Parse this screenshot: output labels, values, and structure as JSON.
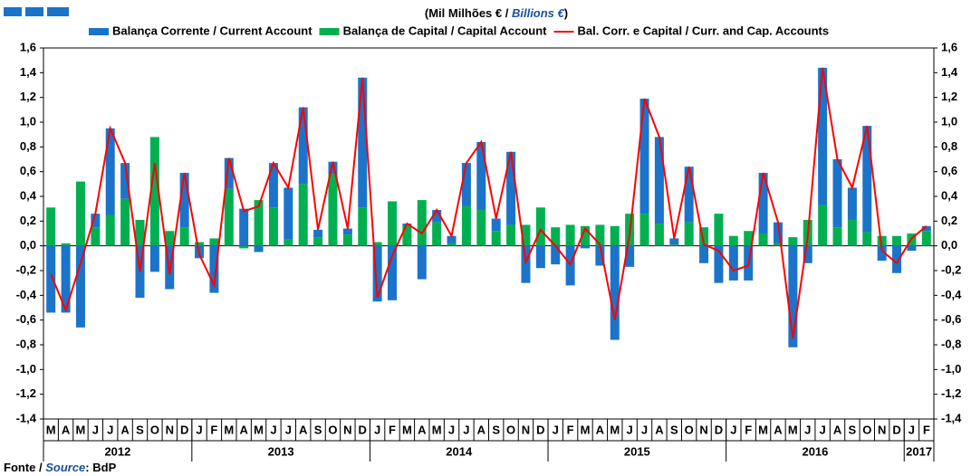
{
  "chart_data": {
    "type": "stacked-bar-line",
    "subtitle_parts": [
      "(Mil Milhões € / ",
      "Billions €",
      ")"
    ],
    "source_parts": [
      "Fonte / ",
      "Source",
      ": BdP"
    ],
    "categories": [
      "M",
      "A",
      "M",
      "J",
      "J",
      "A",
      "S",
      "O",
      "N",
      "D",
      "J",
      "F",
      "M",
      "A",
      "M",
      "J",
      "J",
      "A",
      "S",
      "O",
      "N",
      "D",
      "J",
      "F",
      "M",
      "A",
      "M",
      "J",
      "J",
      "A",
      "S",
      "O",
      "N",
      "D",
      "J",
      "F",
      "M",
      "A",
      "M",
      "J",
      "J",
      "A",
      "S",
      "O",
      "N",
      "D",
      "J",
      "F",
      "M",
      "A",
      "M",
      "J",
      "J",
      "A",
      "S",
      "O",
      "N",
      "D",
      "J",
      "F"
    ],
    "category_years": [
      "2012",
      "2012",
      "2012",
      "2012",
      "2012",
      "2012",
      "2012",
      "2012",
      "2012",
      "2012",
      "2013",
      "2013",
      "2013",
      "2013",
      "2013",
      "2013",
      "2013",
      "2013",
      "2013",
      "2013",
      "2013",
      "2013",
      "2014",
      "2014",
      "2014",
      "2014",
      "2014",
      "2014",
      "2014",
      "2014",
      "2014",
      "2014",
      "2014",
      "2014",
      "2015",
      "2015",
      "2015",
      "2015",
      "2015",
      "2015",
      "2015",
      "2015",
      "2015",
      "2015",
      "2015",
      "2015",
      "2016",
      "2016",
      "2016",
      "2016",
      "2016",
      "2016",
      "2016",
      "2016",
      "2016",
      "2016",
      "2016",
      "2016",
      "2017",
      "2017"
    ],
    "series": [
      {
        "name": "Balança Corrente / Current Account",
        "color": "#1b74c9",
        "kind": "bar",
        "values": [
          -0.54,
          -0.54,
          -0.66,
          0.11,
          0.7,
          0.29,
          -0.42,
          -0.21,
          -0.35,
          0.44,
          -0.1,
          -0.38,
          0.25,
          0.3,
          -0.05,
          0.36,
          0.42,
          0.62,
          0.06,
          0.1,
          0.05,
          1.05,
          -0.45,
          -0.44,
          0.02,
          -0.27,
          0.1,
          0.06,
          0.35,
          0.55,
          0.1,
          0.59,
          -0.3,
          -0.18,
          -0.15,
          -0.32,
          -0.02,
          -0.16,
          -0.76,
          -0.17,
          0.93,
          0.7,
          0.05,
          0.45,
          -0.14,
          -0.3,
          -0.28,
          -0.28,
          0.49,
          0.17,
          -0.82,
          -0.14,
          1.11,
          0.55,
          0.26,
          0.86,
          -0.12,
          -0.22,
          -0.04,
          0.04
        ]
      },
      {
        "name": "Balança de Capital / Capital Account",
        "color": "#00b050",
        "kind": "bar",
        "values": [
          0.31,
          0.02,
          0.52,
          0.15,
          0.25,
          0.38,
          0.21,
          0.88,
          0.12,
          0.15,
          0.03,
          0.06,
          0.46,
          -0.02,
          0.37,
          0.31,
          0.05,
          0.5,
          0.07,
          0.58,
          0.09,
          0.31,
          0.03,
          0.36,
          0.16,
          0.37,
          0.19,
          0.02,
          0.32,
          0.29,
          0.12,
          0.17,
          0.17,
          0.31,
          0.15,
          0.17,
          0.16,
          0.17,
          0.16,
          0.26,
          0.26,
          0.18,
          0.01,
          0.19,
          0.15,
          0.26,
          0.08,
          0.12,
          0.1,
          0.02,
          0.07,
          0.21,
          0.33,
          0.15,
          0.21,
          0.11,
          0.08,
          0.08,
          0.1,
          0.12
        ]
      },
      {
        "name": "Bal. Corr. e Capital / Curr. and Cap. Accounts",
        "color": "#ff0000",
        "kind": "line",
        "values": [
          -0.23,
          -0.52,
          -0.14,
          0.26,
          0.95,
          0.67,
          -0.21,
          0.67,
          -0.23,
          0.59,
          -0.07,
          -0.32,
          0.71,
          0.28,
          0.32,
          0.67,
          0.47,
          1.12,
          0.13,
          0.68,
          0.14,
          1.36,
          -0.42,
          -0.08,
          0.18,
          0.1,
          0.29,
          0.08,
          0.67,
          0.84,
          0.22,
          0.76,
          -0.13,
          0.13,
          0.0,
          -0.15,
          0.14,
          0.01,
          -0.6,
          0.09,
          1.19,
          0.88,
          0.06,
          0.64,
          0.01,
          -0.04,
          -0.2,
          -0.16,
          0.59,
          0.19,
          -0.75,
          0.07,
          1.44,
          0.7,
          0.47,
          0.97,
          -0.04,
          -0.14,
          0.06,
          0.16
        ]
      }
    ],
    "ylim": [
      -1.4,
      1.6
    ],
    "yticks": [
      {
        "value": -1.4,
        "label": "-1,4"
      },
      {
        "value": -1.2,
        "label": "-1,2"
      },
      {
        "value": -1.0,
        "label": "-1,0"
      },
      {
        "value": -0.8,
        "label": "-0,8"
      },
      {
        "value": -0.6,
        "label": "-0,6"
      },
      {
        "value": -0.4,
        "label": "-0,4"
      },
      {
        "value": -0.2,
        "label": "-0,2"
      },
      {
        "value": 0,
        "label": "0,0"
      },
      {
        "value": 0.2,
        "label": "0,2"
      },
      {
        "value": 0.4,
        "label": "0,4"
      },
      {
        "value": 0.6,
        "label": "0,6"
      },
      {
        "value": 0.8,
        "label": "0,8"
      },
      {
        "value": 1.0,
        "label": "1,0"
      },
      {
        "value": 1.2,
        "label": "1,2"
      },
      {
        "value": 1.4,
        "label": "1,4"
      },
      {
        "value": 1.6,
        "label": "1,6"
      }
    ],
    "right_axis": true,
    "grid": false
  }
}
